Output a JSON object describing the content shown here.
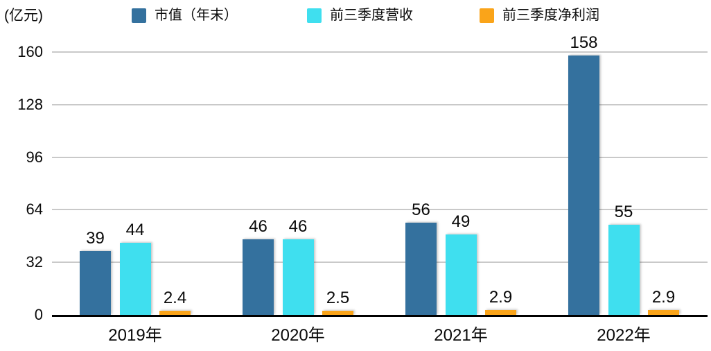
{
  "chart_data": {
    "type": "bar",
    "title": "",
    "unit_label": "(亿元)",
    "categories": [
      "2019年",
      "2020年",
      "2021年",
      "2022年"
    ],
    "series": [
      {
        "key": "market-cap-year-end",
        "name": "市值（年末）",
        "color": "#34719E",
        "values": [
          39,
          46,
          56,
          158
        ]
      },
      {
        "key": "first-three-quarters-revenue",
        "name": "前三季度营收",
        "color": "#3FDFEF",
        "values": [
          44,
          46,
          49,
          55
        ]
      },
      {
        "key": "first-three-quarters-net-profit",
        "name": "前三季度净利润",
        "color": "#FAA419",
        "values": [
          2.4,
          2.5,
          2.9,
          2.9
        ]
      }
    ],
    "y_ticks": [
      0,
      32,
      64,
      96,
      128,
      160
    ],
    "ylim": [
      0,
      160
    ],
    "xlabel": "",
    "ylabel": "(亿元)",
    "grid": "horizontal",
    "legend_position": "top",
    "value_labels": true,
    "colors": {
      "grid": "#c9c9c9",
      "axis": "#000000",
      "text": "#0a0a0a",
      "background": "#ffffff"
    }
  }
}
